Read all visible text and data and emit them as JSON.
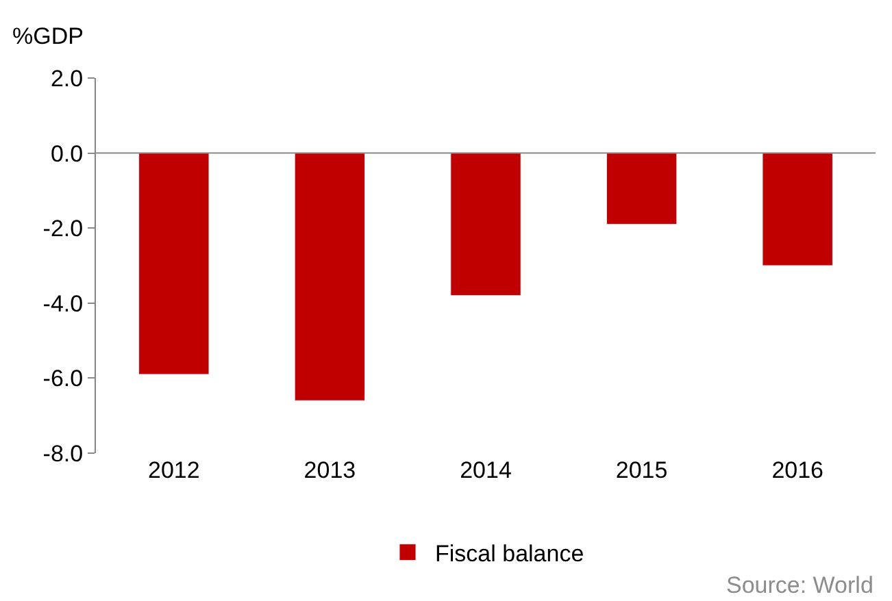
{
  "chart_data": {
    "type": "bar",
    "ylabel": "%GDP",
    "categories": [
      "2012",
      "2013",
      "2014",
      "2015",
      "2016"
    ],
    "series": [
      {
        "name": "Fiscal balance",
        "color": "#c00000",
        "values": [
          -5.9,
          -6.6,
          -3.8,
          -1.9,
          -3.0
        ]
      }
    ],
    "ylim": [
      -8.0,
      2.0
    ],
    "yticks": [
      {
        "value": -8,
        "label": "-8.0"
      },
      {
        "value": -6,
        "label": "-6.0"
      },
      {
        "value": -4,
        "label": "-4.0"
      },
      {
        "value": -2,
        "label": "-2.0"
      },
      {
        "value": 0,
        "label": "0.0"
      },
      {
        "value": 2,
        "label": "2.0"
      }
    ],
    "legend": "bottom",
    "ref_lines": [
      {
        "axis": "y",
        "value": 0,
        "color": "#888888"
      }
    ],
    "annotations": [
      "Source: World"
    ]
  }
}
